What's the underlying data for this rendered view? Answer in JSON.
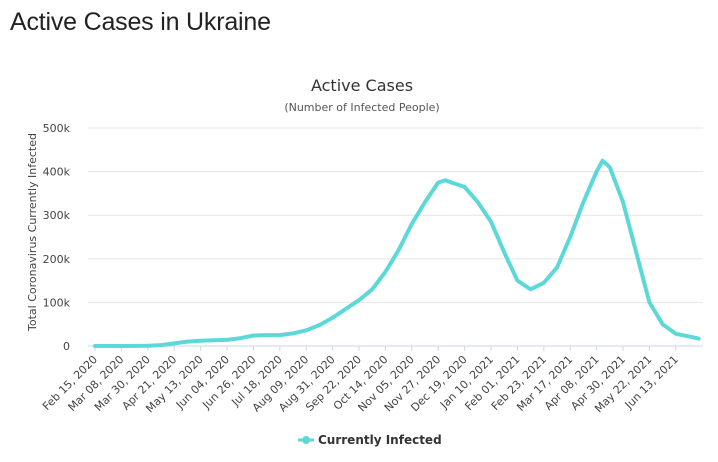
{
  "page": {
    "title": "Active Cases in Ukraine"
  },
  "chart_data": {
    "type": "line",
    "title": "Active Cases",
    "subtitle": "(Number of Infected People)",
    "xlabel": "",
    "ylabel": "Total Coronavirus Currently Infected",
    "ylim": [
      0,
      500000
    ],
    "yticks": [
      0,
      100000,
      200000,
      300000,
      400000,
      500000
    ],
    "ytick_labels": [
      "0",
      "100k",
      "200k",
      "300k",
      "400k",
      "500k"
    ],
    "xtick_labels": [
      "Feb 15, 2020",
      "Mar 08, 2020",
      "Mar 30, 2020",
      "Apr 21, 2020",
      "May 13, 2020",
      "Jun 04, 2020",
      "Jun 26, 2020",
      "Jul 18, 2020",
      "Aug 09, 2020",
      "Aug 31, 2020",
      "Sep 22, 2020",
      "Oct 14, 2020",
      "Nov 05, 2020",
      "Nov 27, 2020",
      "Dec 19, 2020",
      "Jan 10, 2021",
      "Feb 01, 2021",
      "Feb 23, 2021",
      "Mar 17, 2021",
      "Apr 08, 2021",
      "Apr 30, 2021",
      "May 22, 2021",
      "Jun 13, 2021"
    ],
    "grid": "horizontal",
    "legend": "bottom-center",
    "series": [
      {
        "name": "Currently Infected",
        "color": "#5dd8d8",
        "x": [
          "Feb 15, 2020",
          "Mar 08, 2020",
          "Mar 30, 2020",
          "Apr 10, 2020",
          "Apr 21, 2020",
          "May 02, 2020",
          "May 13, 2020",
          "May 24, 2020",
          "Jun 04, 2020",
          "Jun 15, 2020",
          "Jun 26, 2020",
          "Jul 07, 2020",
          "Jul 18, 2020",
          "Jul 29, 2020",
          "Aug 09, 2020",
          "Aug 20, 2020",
          "Aug 31, 2020",
          "Sep 11, 2020",
          "Sep 22, 2020",
          "Oct 03, 2020",
          "Oct 14, 2020",
          "Oct 25, 2020",
          "Nov 05, 2020",
          "Nov 16, 2020",
          "Nov 27, 2020",
          "Dec 03, 2020",
          "Dec 08, 2020",
          "Dec 19, 2020",
          "Dec 30, 2020",
          "Jan 10, 2021",
          "Jan 21, 2021",
          "Feb 01, 2021",
          "Feb 12, 2021",
          "Feb 23, 2021",
          "Mar 06, 2021",
          "Mar 17, 2021",
          "Mar 28, 2021",
          "Apr 08, 2021",
          "Apr 13, 2021",
          "Apr 19, 2021",
          "Apr 30, 2021",
          "May 11, 2021",
          "May 22, 2021",
          "Jun 02, 2021",
          "Jun 13, 2021",
          "Jun 24, 2021",
          "Jul 02, 2021"
        ],
        "values": [
          0,
          0,
          500,
          2000,
          6000,
          10000,
          12000,
          13000,
          14000,
          18000,
          24000,
          25000,
          25000,
          29000,
          36000,
          48000,
          65000,
          85000,
          105000,
          130000,
          170000,
          220000,
          280000,
          330000,
          375000,
          380000,
          375000,
          365000,
          330000,
          285000,
          215000,
          150000,
          130000,
          145000,
          180000,
          250000,
          330000,
          400000,
          425000,
          410000,
          330000,
          215000,
          100000,
          50000,
          28000,
          22000,
          17000
        ]
      }
    ]
  }
}
